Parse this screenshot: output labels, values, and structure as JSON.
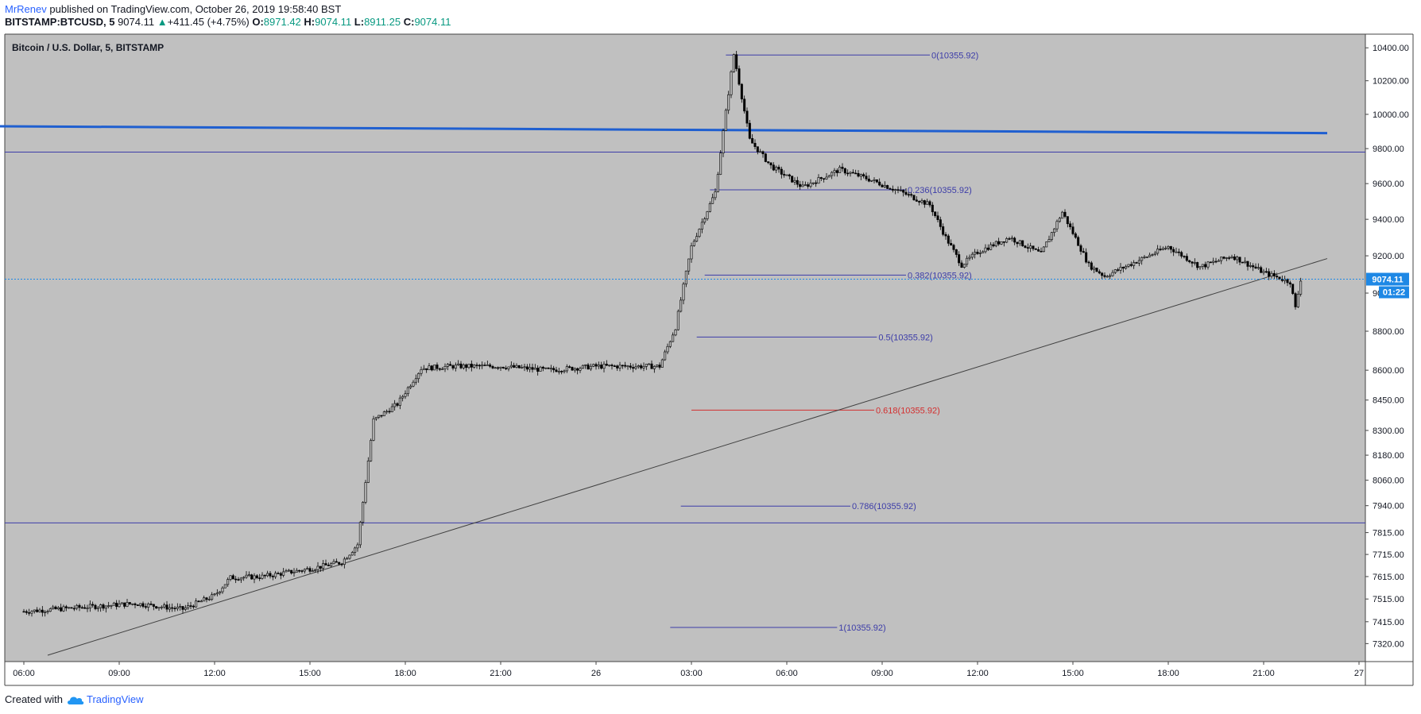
{
  "header": {
    "author": "MrRenev",
    "published_text": "published on TradingView.com, October 26, 2019 19:58:40 BST",
    "symbol": "BITSTAMP:BTCUSD, 5",
    "last": "9074.11",
    "change": "+411.45 (+4.75%)",
    "o_label": "O:",
    "o_value": "8971.42",
    "h_label": "H:",
    "h_value": "9074.11",
    "l_label": "L:",
    "l_value": "8911.25",
    "c_label": "C:",
    "c_value": "9074.11"
  },
  "footer": {
    "created_with": "Created with",
    "brand": "TradingView",
    "brand_icon": "tradingview-cloud-icon"
  },
  "colors": {
    "pane_bg": "#c0c0c0",
    "candle": "#000000",
    "fib_line": "#3c3ca8",
    "fib_red": "#d32f2f",
    "resistance": "#1f5fd0",
    "horizontal": "#3c3ca8",
    "trendline": "#404040",
    "price_badge": "#1e88e5"
  },
  "chart_data": {
    "type": "candlestick",
    "title": "Bitcoin / U.S. Dollar, 5, BITSTAMP",
    "xlabel": "",
    "ylabel": "",
    "y_scale": "log",
    "ylim": [
      7270,
      10440
    ],
    "x_tick_labels": [
      "06:00",
      "09:00",
      "12:00",
      "15:00",
      "18:00",
      "21:00",
      "26",
      "03:00",
      "06:00",
      "09:00",
      "12:00",
      "15:00",
      "18:00",
      "21:00",
      "27"
    ],
    "y_tick_labels": [
      "10400.00",
      "10200.00",
      "10000.00",
      "9800.00",
      "9600.00",
      "9400.00",
      "9200.00",
      "9000.00",
      "8800.00",
      "8600.00",
      "8450.00",
      "8300.00",
      "8180.00",
      "8060.00",
      "7940.00",
      "7815.00",
      "7715.00",
      "7615.00",
      "7515.00",
      "7415.00",
      "7320.00"
    ],
    "y_tick_values": [
      10400,
      10200,
      10000,
      9800,
      9600,
      9400,
      9200,
      9000,
      8800,
      8600,
      8450,
      8300,
      8180,
      8060,
      7940,
      7815,
      7715,
      7615,
      7515,
      7415,
      7320
    ],
    "last_price": {
      "value": 9074.11,
      "label": "9074.11",
      "countdown": "01:22"
    },
    "price_path": [
      [
        "06:00",
        7460
      ],
      [
        "08:00",
        7480
      ],
      [
        "09:30",
        7495
      ],
      [
        "11:00",
        7470
      ],
      [
        "12:00",
        7530
      ],
      [
        "12:30",
        7610
      ],
      [
        "13:30",
        7615
      ],
      [
        "15:00",
        7650
      ],
      [
        "16:00",
        7680
      ],
      [
        "16:30",
        7760
      ],
      [
        "17:00",
        8350
      ],
      [
        "17:45",
        8430
      ],
      [
        "18:30",
        8610
      ],
      [
        "19:30",
        8620
      ],
      [
        "21:00",
        8620
      ],
      [
        "22:30",
        8600
      ],
      [
        "24:00",
        8620
      ],
      [
        "25:30",
        8620
      ],
      [
        "26:00",
        8620
      ],
      [
        "26:30",
        8820
      ],
      [
        "27:00",
        9250
      ],
      [
        "27:45",
        9550
      ],
      [
        "28:20",
        10360
      ],
      [
        "28:50",
        9850
      ],
      [
        "29:30",
        9700
      ],
      [
        "30:30",
        9580
      ],
      [
        "31:40",
        9680
      ],
      [
        "32:30",
        9630
      ],
      [
        "33:30",
        9560
      ],
      [
        "34:30",
        9480
      ],
      [
        "35:00",
        9300
      ],
      [
        "35:30",
        9150
      ],
      [
        "36:00",
        9220
      ],
      [
        "37:00",
        9300
      ],
      [
        "38:00",
        9210
      ],
      [
        "38:40",
        9440
      ],
      [
        "39:30",
        9150
      ],
      [
        "40:00",
        9090
      ],
      [
        "41:00",
        9170
      ],
      [
        "42:00",
        9250
      ],
      [
        "43:00",
        9140
      ],
      [
        "44:00",
        9200
      ],
      [
        "45:00",
        9110
      ],
      [
        "45:50",
        9060
      ],
      [
        "46:00",
        8920
      ],
      [
        "46:10",
        9074
      ]
    ],
    "fibonacci": [
      {
        "level": "0",
        "price": 10355.92,
        "label": "0(10355.92)",
        "color": "#3c3ca8"
      },
      {
        "level": "0.236",
        "price": 9565,
        "label": "0.236(10355.92)",
        "color": "#3c3ca8"
      },
      {
        "level": "0.382",
        "price": 9096,
        "label": "0.382(10355.92)",
        "color": "#3c3ca8"
      },
      {
        "level": "0.5",
        "price": 8770,
        "label": "0.5(10355.92)",
        "color": "#3c3ca8"
      },
      {
        "level": "0.618",
        "price": 8400,
        "label": "0.618(10355.92)",
        "color": "#d32f2f"
      },
      {
        "level": "0.786",
        "price": 7938,
        "label": "0.786(10355.92)",
        "color": "#3c3ca8"
      },
      {
        "level": "1",
        "price": 7390,
        "label": "1(10355.92)",
        "color": "#3c3ca8"
      }
    ],
    "horizontal_lines": [
      9780,
      7860
    ],
    "resistance_line": {
      "from": [
        "05:00",
        9930
      ],
      "to": [
        "47:00",
        9890
      ]
    },
    "trend_line": {
      "from": [
        "06:45",
        7270
      ],
      "to": [
        "47:00",
        9185
      ]
    },
    "grid": false,
    "legend": "none"
  }
}
